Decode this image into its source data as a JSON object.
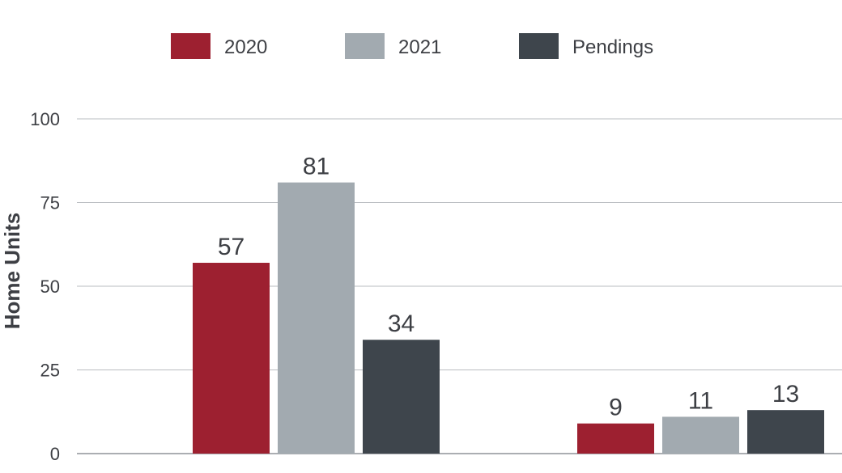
{
  "chart_data": {
    "type": "bar",
    "title": "",
    "xlabel": "",
    "ylabel": "Home Units",
    "ylim": [
      0,
      100
    ],
    "yticks": [
      0,
      25,
      50,
      75,
      100
    ],
    "grid": true,
    "legend_position": "top",
    "categories": [
      "",
      ""
    ],
    "series": [
      {
        "name": "2020",
        "color": "#9d2030",
        "values": [
          57,
          9
        ]
      },
      {
        "name": "2021",
        "color": "#a2aab0",
        "values": [
          81,
          11
        ]
      },
      {
        "name": "Pendings",
        "color": "#3e454c",
        "values": [
          34,
          13
        ]
      }
    ]
  }
}
